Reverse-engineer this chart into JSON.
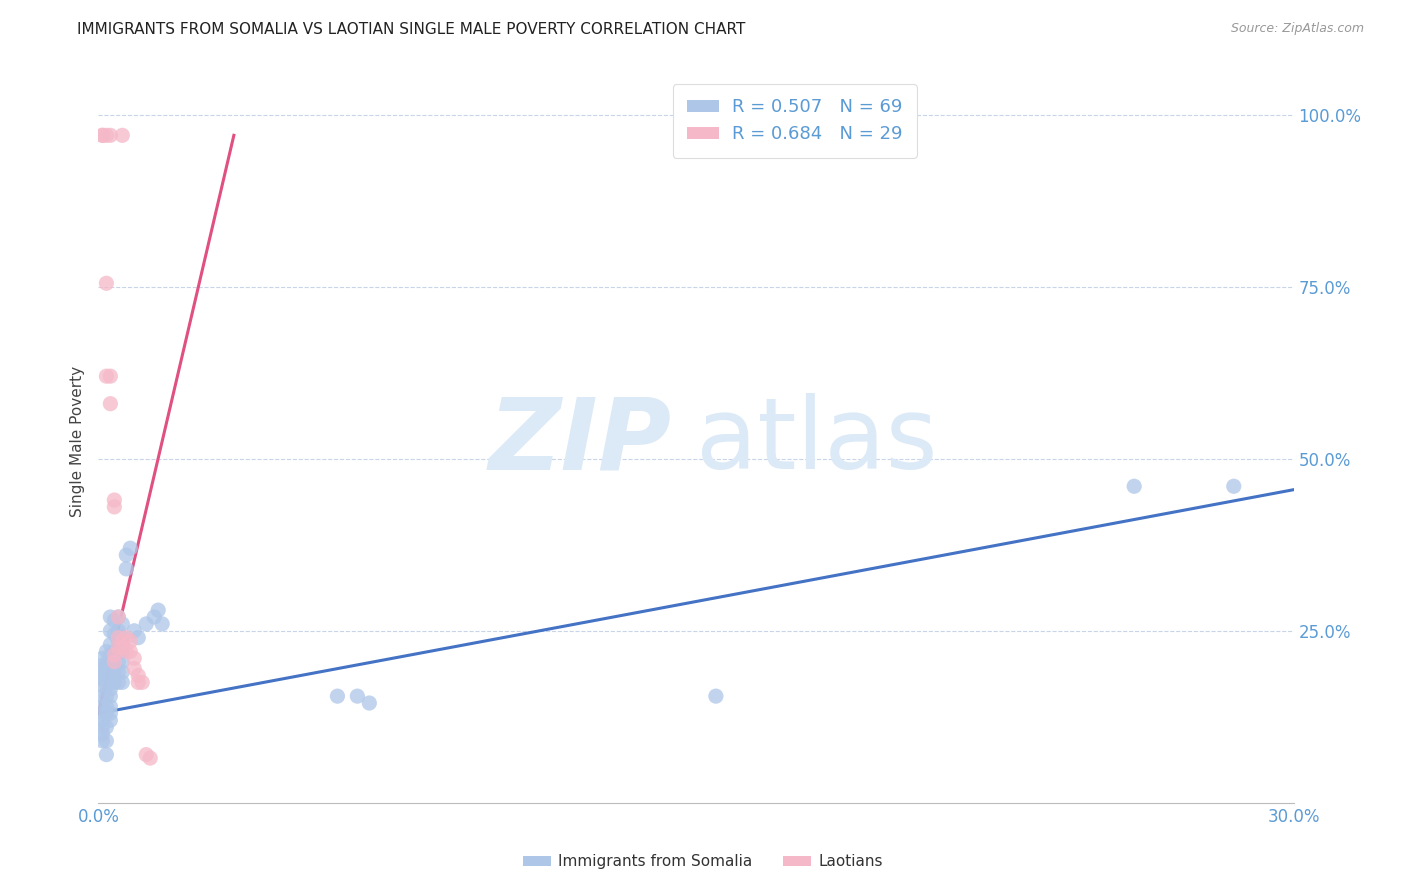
{
  "title": "IMMIGRANTS FROM SOMALIA VS LAOTIAN SINGLE MALE POVERTY CORRELATION CHART",
  "source": "Source: ZipAtlas.com",
  "ylabel": "Single Male Poverty",
  "ytick_labels": [
    "100.0%",
    "75.0%",
    "50.0%",
    "25.0%"
  ],
  "ytick_values": [
    1.0,
    0.75,
    0.5,
    0.25
  ],
  "legend_entry1": "R = 0.507   N = 69",
  "legend_entry2": "R = 0.684   N = 29",
  "legend_label1": "Immigrants from Somalia",
  "legend_label2": "Laotians",
  "color_somalia": "#aec6e8",
  "color_laotians": "#f5b8c8",
  "color_somalia_line": "#4472c4",
  "color_laotians_line": "#e05080",
  "color_axis_labels": "#5b9bd5",
  "watermark_zip": "ZIP",
  "watermark_atlas": "atlas",
  "watermark_color": "#dceaf7",
  "background_color": "#ffffff",
  "xlim": [
    0.0,
    0.3
  ],
  "ylim": [
    0.0,
    1.05
  ],
  "somalia_scatter": [
    [
      0.001,
      0.2
    ],
    [
      0.001,
      0.21
    ],
    [
      0.001,
      0.19
    ],
    [
      0.001,
      0.18
    ],
    [
      0.001,
      0.17
    ],
    [
      0.001,
      0.155
    ],
    [
      0.001,
      0.14
    ],
    [
      0.001,
      0.13
    ],
    [
      0.001,
      0.12
    ],
    [
      0.001,
      0.11
    ],
    [
      0.001,
      0.1
    ],
    [
      0.001,
      0.09
    ],
    [
      0.002,
      0.22
    ],
    [
      0.002,
      0.2
    ],
    [
      0.002,
      0.19
    ],
    [
      0.002,
      0.18
    ],
    [
      0.002,
      0.17
    ],
    [
      0.002,
      0.155
    ],
    [
      0.002,
      0.14
    ],
    [
      0.002,
      0.13
    ],
    [
      0.002,
      0.11
    ],
    [
      0.002,
      0.09
    ],
    [
      0.002,
      0.07
    ],
    [
      0.003,
      0.27
    ],
    [
      0.003,
      0.25
    ],
    [
      0.003,
      0.23
    ],
    [
      0.003,
      0.215
    ],
    [
      0.003,
      0.2
    ],
    [
      0.003,
      0.19
    ],
    [
      0.003,
      0.175
    ],
    [
      0.003,
      0.165
    ],
    [
      0.003,
      0.155
    ],
    [
      0.003,
      0.14
    ],
    [
      0.003,
      0.13
    ],
    [
      0.003,
      0.12
    ],
    [
      0.004,
      0.265
    ],
    [
      0.004,
      0.245
    ],
    [
      0.004,
      0.22
    ],
    [
      0.004,
      0.21
    ],
    [
      0.004,
      0.2
    ],
    [
      0.004,
      0.19
    ],
    [
      0.004,
      0.175
    ],
    [
      0.005,
      0.27
    ],
    [
      0.005,
      0.25
    ],
    [
      0.005,
      0.235
    ],
    [
      0.005,
      0.22
    ],
    [
      0.005,
      0.205
    ],
    [
      0.005,
      0.19
    ],
    [
      0.005,
      0.175
    ],
    [
      0.006,
      0.26
    ],
    [
      0.006,
      0.24
    ],
    [
      0.006,
      0.22
    ],
    [
      0.006,
      0.205
    ],
    [
      0.006,
      0.19
    ],
    [
      0.006,
      0.175
    ],
    [
      0.007,
      0.36
    ],
    [
      0.007,
      0.34
    ],
    [
      0.008,
      0.37
    ],
    [
      0.009,
      0.25
    ],
    [
      0.01,
      0.24
    ],
    [
      0.012,
      0.26
    ],
    [
      0.014,
      0.27
    ],
    [
      0.015,
      0.28
    ],
    [
      0.016,
      0.26
    ],
    [
      0.06,
      0.155
    ],
    [
      0.065,
      0.155
    ],
    [
      0.068,
      0.145
    ],
    [
      0.155,
      0.155
    ],
    [
      0.26,
      0.46
    ],
    [
      0.285,
      0.46
    ]
  ],
  "laotians_scatter": [
    [
      0.001,
      0.97
    ],
    [
      0.001,
      0.97
    ],
    [
      0.002,
      0.97
    ],
    [
      0.003,
      0.97
    ],
    [
      0.006,
      0.97
    ],
    [
      0.002,
      0.755
    ],
    [
      0.002,
      0.62
    ],
    [
      0.003,
      0.62
    ],
    [
      0.003,
      0.58
    ],
    [
      0.004,
      0.44
    ],
    [
      0.004,
      0.43
    ],
    [
      0.004,
      0.215
    ],
    [
      0.004,
      0.205
    ],
    [
      0.005,
      0.27
    ],
    [
      0.005,
      0.24
    ],
    [
      0.005,
      0.225
    ],
    [
      0.006,
      0.235
    ],
    [
      0.006,
      0.225
    ],
    [
      0.007,
      0.24
    ],
    [
      0.007,
      0.22
    ],
    [
      0.008,
      0.235
    ],
    [
      0.008,
      0.22
    ],
    [
      0.009,
      0.21
    ],
    [
      0.009,
      0.195
    ],
    [
      0.01,
      0.185
    ],
    [
      0.01,
      0.175
    ],
    [
      0.011,
      0.175
    ],
    [
      0.012,
      0.07
    ],
    [
      0.013,
      0.065
    ]
  ],
  "somalia_trendline_x": [
    0.0,
    0.3
  ],
  "somalia_trendline_y": [
    0.13,
    0.455
  ],
  "laotians_trendline_x": [
    0.0,
    0.034
  ],
  "laotians_trendline_y": [
    0.13,
    0.97
  ]
}
